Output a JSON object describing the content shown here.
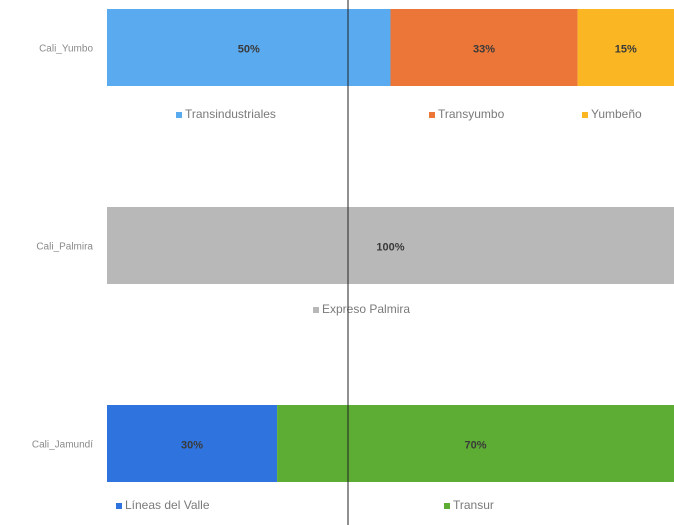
{
  "chart_data": [
    {
      "type": "bar",
      "orientation": "horizontal",
      "stacked": true,
      "categories": [
        "Cali_Yumbo"
      ],
      "series": [
        {
          "name": "Transindustriales",
          "values": [
            50
          ],
          "color": "#5aaaf0"
        },
        {
          "name": "Transyumbo",
          "values": [
            33
          ],
          "color": "#ec7637"
        },
        {
          "name": "Yumbeño",
          "values": [
            15
          ],
          "color": "#fbb623"
        }
      ],
      "data_labels": [
        "50%",
        "33%",
        "15%"
      ],
      "legend": "bottom"
    },
    {
      "type": "bar",
      "orientation": "horizontal",
      "stacked": true,
      "categories": [
        "Cali_Palmira"
      ],
      "series": [
        {
          "name": "Expreso Palmira",
          "values": [
            100
          ],
          "color": "#b8b8b8"
        }
      ],
      "data_labels": [
        "100%"
      ],
      "legend": "bottom"
    },
    {
      "type": "bar",
      "orientation": "horizontal",
      "stacked": true,
      "categories": [
        "Cali_Jamundí"
      ],
      "series": [
        {
          "name": "Líneas del Valle",
          "values": [
            30
          ],
          "color": "#2f74de"
        },
        {
          "name": "Transur",
          "values": [
            70
          ],
          "color": "#5dac34"
        }
      ],
      "data_labels": [
        "30%",
        "70%"
      ],
      "legend": "bottom"
    }
  ]
}
